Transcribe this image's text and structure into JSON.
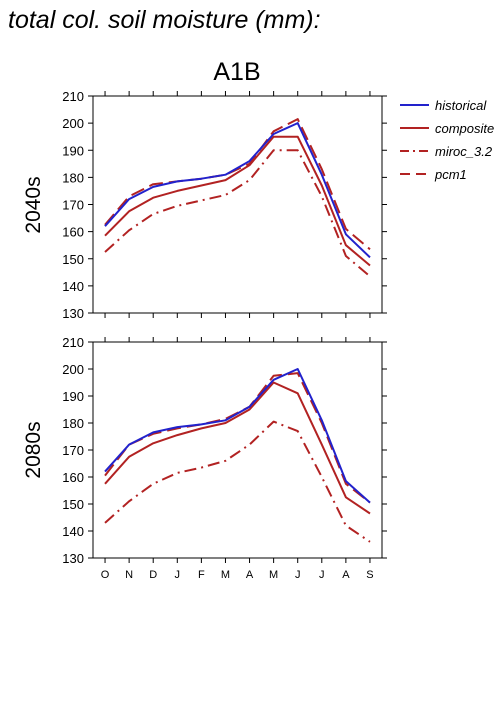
{
  "page_title": "total col. soil moisture (mm):",
  "colors": {
    "historical": "#2222cc",
    "composite": "#b22222",
    "miroc_3.2": "#b22222",
    "pcm1": "#b22222"
  },
  "legend": {
    "placement": "right",
    "items": [
      {
        "label": "historical",
        "color": "#2222cc",
        "style": "solid"
      },
      {
        "label": "composite",
        "color": "#b22222",
        "style": "solid"
      },
      {
        "label": "miroc_3.2",
        "color": "#b22222",
        "style": "dash-dot"
      },
      {
        "label": "pcm1",
        "color": "#b22222",
        "style": "dashed"
      }
    ]
  },
  "chart_data": [
    {
      "type": "line",
      "title": "A1B",
      "ylabel": "2040s",
      "xlabel": "",
      "categories": [
        "O",
        "N",
        "D",
        "J",
        "F",
        "M",
        "A",
        "M",
        "J",
        "J",
        "A",
        "S"
      ],
      "ylim": [
        130,
        210
      ],
      "yticks": [
        130,
        140,
        150,
        160,
        170,
        180,
        190,
        200,
        210
      ],
      "grid": false,
      "series": [
        {
          "name": "historical",
          "style": "solid",
          "color": "#2222cc",
          "values": [
            162,
            172,
            176.5,
            178.5,
            179.5,
            181,
            186,
            196,
            200,
            181,
            159,
            150.5
          ]
        },
        {
          "name": "composite",
          "style": "solid",
          "color": "#b22222",
          "values": [
            158.5,
            167.5,
            172.5,
            175,
            177,
            179,
            184.5,
            195,
            195,
            177,
            155,
            147.5
          ]
        },
        {
          "name": "miroc_3.2",
          "style": "dash-dot",
          "color": "#b22222",
          "values": [
            152.5,
            160.5,
            166.5,
            169.5,
            171.5,
            173.5,
            179,
            190,
            190,
            173,
            151,
            143.5
          ]
        },
        {
          "name": "pcm1",
          "style": "dashed",
          "color": "#b22222",
          "values": [
            162.5,
            173,
            177.5,
            178.5,
            179.5,
            181,
            185,
            197,
            201.5,
            183,
            161,
            153.5
          ]
        }
      ]
    },
    {
      "type": "line",
      "title": "",
      "ylabel": "2080s",
      "xlabel": "",
      "categories": [
        "O",
        "N",
        "D",
        "J",
        "F",
        "M",
        "A",
        "M",
        "J",
        "J",
        "A",
        "S"
      ],
      "ylim": [
        130,
        210
      ],
      "yticks": [
        130,
        140,
        150,
        160,
        170,
        180,
        190,
        200,
        210
      ],
      "grid": false,
      "series": [
        {
          "name": "historical",
          "style": "solid",
          "color": "#2222cc",
          "values": [
            162,
            172,
            176.5,
            178.5,
            179.5,
            181,
            186,
            196,
            200,
            181,
            158.5,
            150.5
          ]
        },
        {
          "name": "composite",
          "style": "solid",
          "color": "#b22222",
          "values": [
            157.5,
            167.5,
            172.5,
            175.5,
            178,
            180,
            185,
            195,
            191,
            172,
            152.5,
            146.5
          ]
        },
        {
          "name": "miroc_3.2",
          "style": "dash-dot",
          "color": "#b22222",
          "values": [
            143,
            151,
            157.5,
            161.5,
            163.5,
            166,
            172,
            180.5,
            177,
            160,
            142,
            136
          ]
        },
        {
          "name": "pcm1",
          "style": "dashed",
          "color": "#b22222",
          "values": [
            160.5,
            172,
            176,
            178,
            179.5,
            181.5,
            186,
            197.5,
            198.5,
            180,
            157.5,
            150.5
          ]
        }
      ]
    }
  ]
}
